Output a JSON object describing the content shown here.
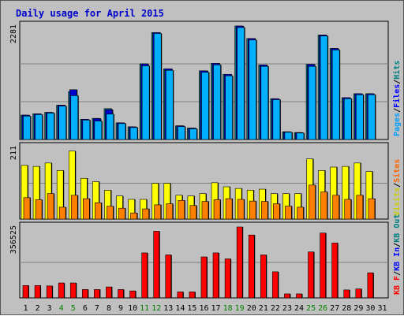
{
  "chart_data": {
    "title": "Daily usage for April 2015",
    "type": "bar",
    "x": [
      1,
      2,
      3,
      4,
      5,
      6,
      7,
      8,
      9,
      10,
      11,
      12,
      13,
      14,
      15,
      16,
      17,
      18,
      19,
      20,
      21,
      22,
      23,
      24,
      25,
      26,
      27,
      28,
      29,
      30,
      31
    ],
    "weekend_days": [
      4,
      5,
      11,
      12,
      18,
      19,
      25,
      26
    ],
    "panels": [
      {
        "name": "hits-files-pages",
        "max_label": "2281",
        "ymax": 2281,
        "legend": [
          {
            "label": "Pages",
            "color": "#00a0ff"
          },
          {
            "label": "/",
            "color": "#000000"
          },
          {
            "label": "Files",
            "color": "#0000ff"
          },
          {
            "label": "/",
            "color": "#000000"
          },
          {
            "label": "Hits",
            "color": "#008080"
          }
        ],
        "series": [
          {
            "name": "Hits",
            "color": "#008080",
            "values": [
              490,
              515,
              545,
              690,
              960,
              405,
              425,
              620,
              335,
              255,
              1520,
              2150,
              1420,
              275,
              230,
              1380,
              1530,
              1310,
              2281,
              2030,
              1500,
              820,
              155,
              140,
              1510,
              2100,
              1830,
              840,
              920,
              920,
              0
            ]
          },
          {
            "name": "Files",
            "color": "#0000cc",
            "values": [
              490,
              515,
              545,
              690,
              1000,
              405,
              420,
              600,
              335,
              255,
              1520,
              2150,
              1420,
              275,
              230,
              1380,
              1530,
              1310,
              2281,
              2030,
              1500,
              820,
              155,
              140,
              1510,
              2100,
              1830,
              840,
              920,
              920,
              0
            ]
          },
          {
            "name": "Pages",
            "color": "#00b0ff",
            "values": [
              470,
              500,
              530,
              670,
              880,
              390,
              370,
              510,
              320,
              240,
              1480,
              2130,
              1390,
              260,
              215,
              1350,
              1500,
              1280,
              2250,
              2000,
              1470,
              800,
              145,
              130,
              1470,
              2080,
              1800,
              820,
              900,
              900,
              0
            ]
          }
        ]
      },
      {
        "name": "visits-sites",
        "max_label": "211",
        "ymax": 211,
        "legend": [
          {
            "label": "Visits",
            "color": "#cccc00"
          },
          {
            "label": "/",
            "color": "#000000"
          },
          {
            "label": "Sites",
            "color": "#ff6600"
          }
        ],
        "series": [
          {
            "name": "Visits",
            "color": "#ffff00",
            "values": [
              158,
              155,
              165,
              143,
              200,
              120,
              110,
              85,
              68,
              58,
              58,
              105,
              105,
              70,
              68,
              75,
              107,
              95,
              90,
              85,
              88,
              75,
              75,
              75,
              177,
              143,
              153,
              155,
              165,
              140,
              0
            ]
          },
          {
            "name": "Sites",
            "color": "#ff8000",
            "values": [
              63,
              57,
              75,
              35,
              70,
              60,
              48,
              38,
              32,
              18,
              30,
              42,
              45,
              55,
              40,
              52,
              57,
              60,
              58,
              53,
              52,
              45,
              38,
              35,
              100,
              80,
              70,
              58,
              70,
              60,
              0
            ]
          }
        ]
      },
      {
        "name": "kbf-kbin-kbout",
        "max_label": "356525",
        "ymax": 356525,
        "legend": [
          {
            "label": "KB F",
            "color": "#ff0000"
          },
          {
            "label": "/",
            "color": "#000000"
          },
          {
            "label": "KB In",
            "color": "#0000ff"
          },
          {
            "label": "/",
            "color": "#000000"
          },
          {
            "label": "KB Out",
            "color": "#008080"
          }
        ],
        "series": [
          {
            "name": "KB F",
            "color": "#ff0000",
            "values": [
              62000,
              62000,
              60000,
              75000,
              75000,
              42000,
              42000,
              55000,
              42000,
              35000,
              226000,
              335000,
              216000,
              30000,
              30000,
              206000,
              226000,
              196000,
              356525,
              316000,
              216000,
              131000,
              20000,
              20000,
              231000,
              326000,
              276000,
              40000,
              45000,
              126000,
              0
            ]
          }
        ]
      }
    ]
  }
}
